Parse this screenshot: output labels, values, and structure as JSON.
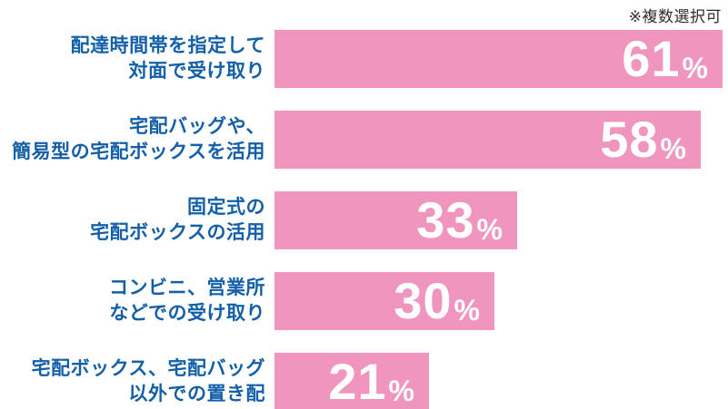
{
  "chart_data": {
    "type": "bar",
    "orientation": "horizontal",
    "note": "※複数選択可",
    "unit": "%",
    "categories": [
      "配達時間帯を指定して\n対面で受け取り",
      "宅配バッグや、\n簡易型の宅配ボックスを活用",
      "固定式の\n宅配ボックスの活用",
      "コンビニ、営業所\nなどでの受け取り",
      "宅配ボックス、宅配バッグ\n以外での置き配"
    ],
    "values": [
      61,
      58,
      33,
      30,
      21
    ],
    "xlim": [
      0,
      61
    ],
    "legend": "none",
    "grid": "off",
    "colors": {
      "bar": "#f095bd",
      "label_text": "#135fa8",
      "value_text": "#ffffff",
      "note_text": "#332b28",
      "background": "#ffffff"
    },
    "rows": [
      {
        "label": "配達時間帯を指定して\n対面で受け取り",
        "value": 61
      },
      {
        "label": "宅配バッグや、\n簡易型の宅配ボックスを活用",
        "value": 58
      },
      {
        "label": "固定式の\n宅配ボックスの活用",
        "value": 33
      },
      {
        "label": "コンビニ、営業所\nなどでの受け取り",
        "value": 30
      },
      {
        "label": "宅配ボックス、宅配バッグ\n以外での置き配",
        "value": 21
      }
    ]
  }
}
